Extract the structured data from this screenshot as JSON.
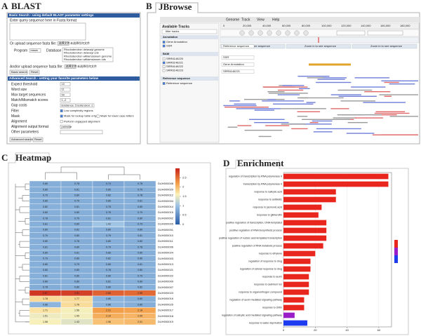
{
  "blast": {
    "panel": "A",
    "title": "BLAST",
    "basic_header": "Basic Search - using default BLAST parameter settings",
    "query_label": "Enter query sequence here in Fasta format",
    "upload_label": "Or upload sequence fasta file:",
    "file_button": "选择文件",
    "file_status": "未选择任何文件",
    "program_label": "Program",
    "program": "blastn",
    "database_label": "Database",
    "databases": [
      "Rhododendron delavayi genome",
      "Rhododendron delavayi cds",
      "Rhododendron williamsianum genome",
      "Rhododendron williamsianum cds"
    ],
    "upload2_label": "And/or upload sequence fasta file:",
    "basic_button": "Basic search",
    "reset": "Reset",
    "advanced_header": "Advanced Search - setting your favorite parameters below",
    "params": [
      {
        "label": "Expect threshold",
        "value": "10"
      },
      {
        "label": "Word size",
        "value": "11"
      },
      {
        "label": "Max target sequences",
        "value": "50"
      },
      {
        "label": "Match/Mismatch scores",
        "value": "1,-2"
      },
      {
        "label": "Gap costs",
        "value": "Existence: 5 Extension: 2"
      },
      {
        "label": "Filter",
        "options": [
          "Low complexity regions"
        ]
      },
      {
        "label": "Mask",
        "options": [
          "Mask for lookup table only",
          "Mask for lower case letters"
        ]
      },
      {
        "label": "Alignment",
        "options": [
          "Perform ungapped alignment"
        ]
      },
      {
        "label": "Alignment output format",
        "value": "pairwise"
      },
      {
        "label": "Other parameters"
      }
    ],
    "advanced_button": "Advanced search"
  },
  "jbrowse": {
    "panel": "B",
    "title": "JBrowse",
    "menu": [
      "Genome",
      "Track",
      "View",
      "Help"
    ],
    "tracks_title": "Available Tracks",
    "filter": "filter tracks",
    "groups": [
      {
        "name": "Annotation",
        "items": [
          "Gene Annotation",
          "SSR"
        ]
      },
      {
        "name": "BAM",
        "items": [
          "SRR6146220",
          "SRR6146221",
          "SRR6146222",
          "SRR6146223"
        ]
      },
      {
        "name": "Reference sequence",
        "items": [
          "Reference sequence"
        ]
      }
    ],
    "ruler": [
      "0",
      "20,000",
      "40,000",
      "60,000",
      "80,000",
      "100,000",
      "120,000",
      "140,000",
      "160,000",
      "180,000"
    ],
    "zoom": "Zoom in to see sequence",
    "track_labels": [
      "Reference sequence",
      "SSR",
      "Gene Annotation",
      "SRR6146221"
    ]
  },
  "chart_data": [
    {
      "type": "heatmap",
      "panel": "C",
      "title": "Heatmap",
      "rows": [
        "DUH000008",
        "DUH000020",
        "DUH000012",
        "DUH000004",
        "DUH000014",
        "DUH000015",
        "DUH000002",
        "DUH000005",
        "DUH000001",
        "DUH000010",
        "DUH000011",
        "DUH000006",
        "DUH000024",
        "DUH000003",
        "DUH000013",
        "DUH000021",
        "DUH000022",
        "DUH000009",
        "DUH000007",
        "DUH000023",
        "DUH000016",
        "DUH000025",
        "DUH000017",
        "DUH000018",
        "DUH000019"
      ],
      "values": [
        [
          0.8,
          0.78,
          0.74,
          0.78
        ],
        [
          0.8,
          0.81,
          0.8,
          0.79
        ],
        [
          0.79,
          0.8,
          0.82,
          0.78
        ],
        [
          0.8,
          0.79,
          0.8,
          0.81
        ],
        [
          0.82,
          0.81,
          0.78,
          0.8
        ],
        [
          0.8,
          0.8,
          0.76,
          0.79
        ],
        [
          0.78,
          0.79,
          0.81,
          0.8
        ],
        [
          0.81,
          0.8,
          1.02,
          0.79
        ],
        [
          0.8,
          0.82,
          0.8,
          0.8
        ],
        [
          0.79,
          0.8,
          0.79,
          0.81
        ],
        [
          0.8,
          0.78,
          0.8,
          0.8
        ],
        [
          0.81,
          0.8,
          0.79,
          0.78
        ],
        [
          0.8,
          0.81,
          0.8,
          0.8
        ],
        [
          0.79,
          0.8,
          0.82,
          0.8
        ],
        [
          0.8,
          0.79,
          0.8,
          0.81
        ],
        [
          0.8,
          0.8,
          0.78,
          0.8
        ],
        [
          0.81,
          0.8,
          0.8,
          0.79
        ],
        [
          0.8,
          0.8,
          0.81,
          0.8
        ],
        [
          0.78,
          0.8,
          0.8,
          0.82
        ],
        [
          2.87,
          2.81,
          2.6,
          2.55
        ],
        [
          1.78,
          1.77,
          0.86,
          0.8
        ],
        [
          0.86,
          1.76,
          0.86,
          0.8
        ],
        [
          1.71,
          1.56,
          2.21,
          2.18
        ],
        [
          1.51,
          1.55,
          2.1,
          2.05
        ],
        [
          1.58,
          1.43,
          1.96,
          2.01
        ]
      ],
      "value_labels": [
        [
          "0.80",
          "0.78",
          "0.74",
          "0.78"
        ],
        [
          "0.80",
          "0.81",
          "0.80",
          "0.79"
        ],
        [
          "0.79",
          "0.80",
          "0.82",
          "0.78"
        ],
        [
          "0.80",
          "0.79",
          "0.80",
          "0.81"
        ],
        [
          "0.82",
          "0.81",
          "0.78",
          "0.80"
        ],
        [
          "0.80",
          "0.80",
          "0.76",
          "0.79"
        ],
        [
          "0.78",
          "0.79",
          "0.81",
          "0.80"
        ],
        [
          "0.81",
          "0.80",
          "1.02",
          "0.79"
        ],
        [
          "0.80",
          "0.82",
          "0.80",
          "0.80"
        ],
        [
          "0.79",
          "0.80",
          "0.79",
          "0.81"
        ],
        [
          "0.80",
          "0.78",
          "0.80",
          "0.80"
        ],
        [
          "0.81",
          "0.80",
          "0.79",
          "0.78"
        ],
        [
          "0.80",
          "0.81",
          "0.80",
          "0.80"
        ],
        [
          "0.79",
          "0.80",
          "0.82",
          "0.80"
        ],
        [
          "0.80",
          "0.79",
          "0.80",
          "0.81"
        ],
        [
          "0.80",
          "0.80",
          "0.78",
          "0.80"
        ],
        [
          "0.81",
          "0.80",
          "0.80",
          "0.79"
        ],
        [
          "0.80",
          "0.80",
          "0.81",
          "0.80"
        ],
        [
          "0.78",
          "0.80",
          "0.80",
          "0.82"
        ],
        [
          "2.87",
          "2.81",
          "2.60",
          "2.55"
        ],
        [
          "1.78",
          "1.77",
          "0.86",
          "0.80"
        ],
        [
          "0.86",
          "1.76",
          "0.86",
          "0.80"
        ],
        [
          "1.71",
          "1.56",
          "2.21",
          "2.18"
        ],
        [
          "1.51",
          "1.55",
          "2.10",
          "2.05"
        ],
        [
          "1.58",
          "1.43",
          "1.96",
          "2.01"
        ]
      ],
      "clim": [
        0,
        3
      ],
      "cticks": [
        0,
        0.5,
        1,
        1.5,
        2,
        2.5
      ],
      "colorscale": [
        [
          0,
          "#2a5ca6"
        ],
        [
          1,
          "#9cc2e5"
        ],
        [
          1.6,
          "#fbf2b8"
        ],
        [
          2.2,
          "#f4a04a"
        ],
        [
          3,
          "#c8231c"
        ]
      ]
    },
    {
      "type": "barh",
      "panel": "D",
      "title": "Enrichment",
      "categories": [
        "regulation of transcription by RNA polymerase II",
        "transcription by RNA polymerase II",
        "response to salicylic acid",
        "response to antibiotic",
        "response to jasmonic acid",
        "response to gibberellin",
        "positive regulation of transcription, DNA-templated",
        "positive regulation of RNA biosynthetic process",
        "positive regulation of nucleic acid-templated transcription",
        "positive regulation of RNA metabolic process",
        "response to ethylene",
        "regulation of response to drug",
        "regulation of cellular response to drug",
        "response to auxin",
        "response to cadmium ion",
        "response to organonitrogen compound",
        "regulation of auxin mediated signaling pathway",
        "response to chitin",
        "regulation of salicylic acid mediated signaling pathway",
        "response to water deprivation"
      ],
      "values": [
        66,
        66,
        33,
        33,
        24,
        22,
        27,
        27,
        27,
        25,
        20,
        17,
        17,
        16,
        16,
        16,
        13,
        13,
        7,
        15
      ],
      "colors": [
        "#e8261d",
        "#e8261d",
        "#e8261d",
        "#e8261d",
        "#e8261d",
        "#e8261d",
        "#e8261d",
        "#e8261d",
        "#e8261d",
        "#e8261d",
        "#e8261d",
        "#e8261d",
        "#e8261d",
        "#e8261d",
        "#e8261d",
        "#e8261d",
        "#e8261d",
        "#e8261d",
        "#9a1ec8",
        "#1d3cf0"
      ],
      "xlim": [
        0,
        68
      ],
      "xticks": [
        0,
        20,
        40,
        60
      ]
    }
  ]
}
